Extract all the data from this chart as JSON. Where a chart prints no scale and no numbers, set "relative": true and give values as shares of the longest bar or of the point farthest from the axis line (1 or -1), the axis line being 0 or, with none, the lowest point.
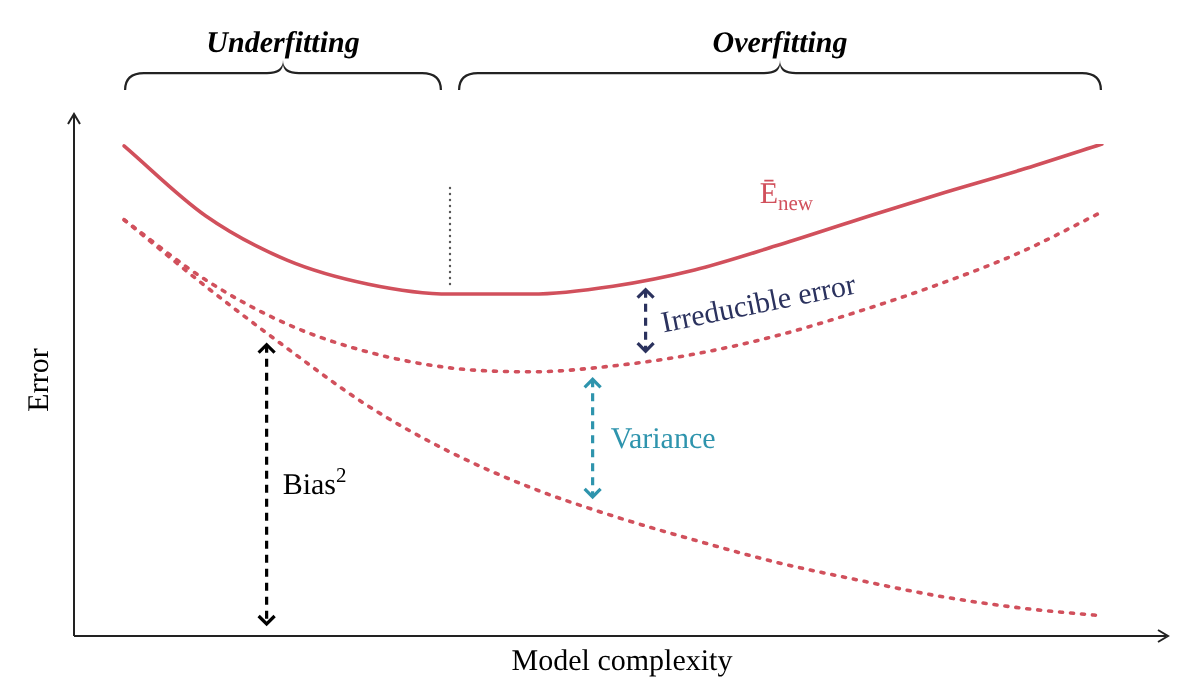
{
  "chart_data": {
    "type": "line",
    "relative": true,
    "xlabel": "Model complexity",
    "ylabel": "Error",
    "categories": [
      null,
      null,
      null,
      null,
      null,
      null,
      null,
      null,
      null,
      null,
      null,
      null,
      null
    ],
    "series": [
      {
        "name": "Ē$_{new}$",
        "color": "#d1505c",
        "line_style": "solid",
        "values": [
          0.996,
          0.854,
          0.764,
          0.715,
          0.695,
          0.695,
          0.711,
          0.744,
          0.793,
          0.846,
          0.898,
          0.947,
          1
        ]
      },
      {
        "color": "#d1505c",
        "line_style": "dotted",
        "values": [
          0.846,
          0.724,
          0.634,
          0.577,
          0.545,
          0.537,
          0.549,
          0.573,
          0.61,
          0.659,
          0.715,
          0.78,
          0.862
        ]
      },
      {
        "color": "#d1505c",
        "line_style": "dotted",
        "values": [
          0.846,
          0.711,
          0.585,
          0.467,
          0.374,
          0.301,
          0.244,
          0.195,
          0.15,
          0.114,
          0.081,
          0.057,
          0.041
        ]
      }
    ],
    "annotations": [
      "Underfitting",
      "Overfitting",
      "Irreducible error",
      "Variance",
      "Bias$^{2}$"
    ],
    "marker": "none"
  }
}
